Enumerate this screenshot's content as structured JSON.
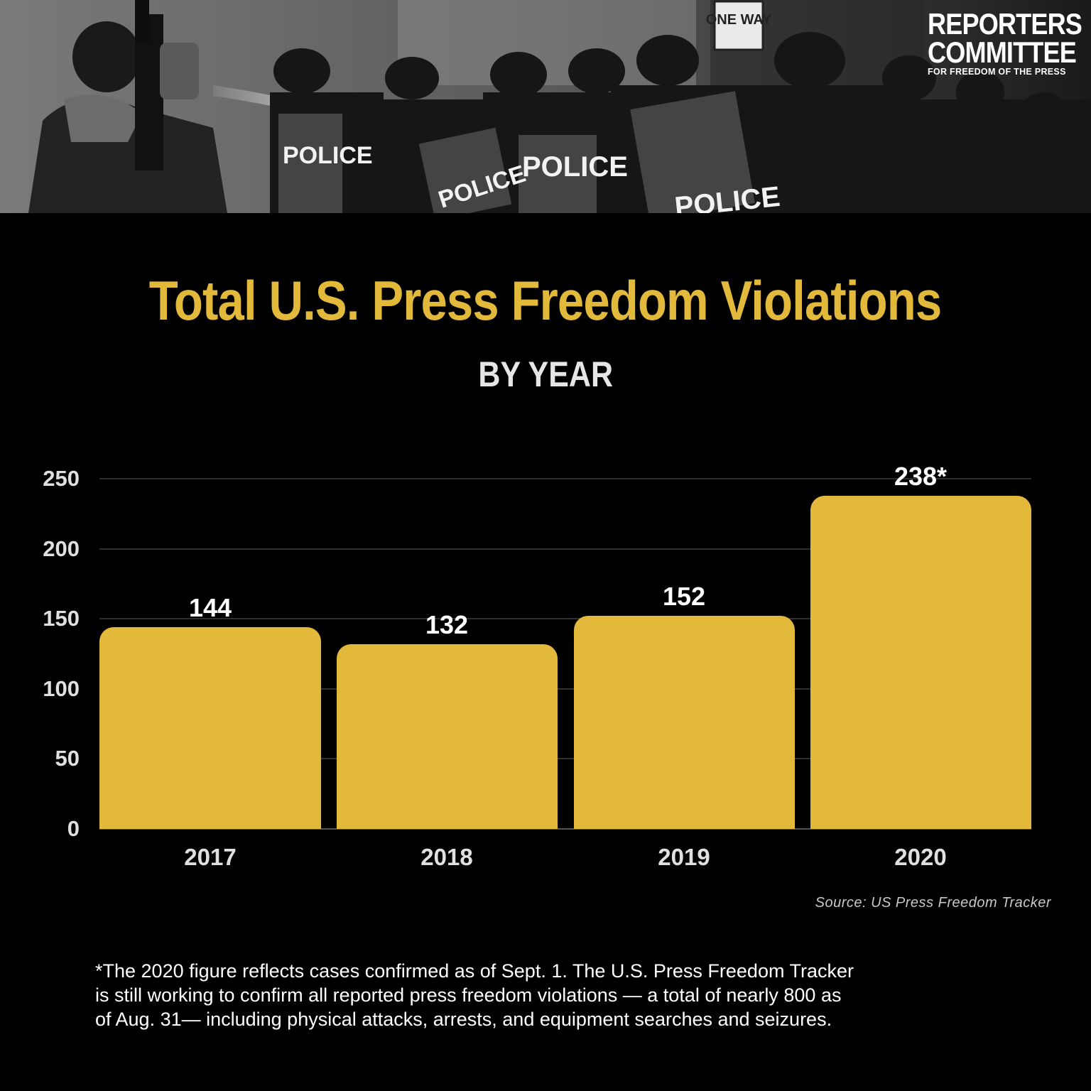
{
  "header": {
    "photo_description": "Grayscale photo of a camera operator filming riot police with shields labeled POLICE while a spray stream crosses the frame; a ONE WAY street sign is visible",
    "photo_texts": [
      "ONE WAY",
      "POLICE",
      "POLICE",
      "POLICE",
      "POLICE"
    ],
    "logo": {
      "line1": "REPORTERS",
      "line2": "COMMITTEE",
      "line3": "FOR FREEDOM OF THE PRESS"
    }
  },
  "title": "Total U.S. Press Freedom Violations",
  "subtitle": "BY YEAR",
  "colors": {
    "background": "#000000",
    "accent": "#e2b93b",
    "bar": "#e2b93b",
    "value_label": "#ffffff",
    "axis_label": "#e0e0e0",
    "gridline": "#2e2e2e"
  },
  "chart_data": {
    "type": "bar",
    "title": "Total U.S. Press Freedom Violations",
    "subtitle": "BY YEAR",
    "categories": [
      "2017",
      "2018",
      "2019",
      "2020"
    ],
    "values": [
      144,
      132,
      152,
      238
    ],
    "value_labels": [
      "144",
      "132",
      "152",
      "238*"
    ],
    "xlabel": "",
    "ylabel": "",
    "ylim": [
      0,
      250
    ],
    "yticks": [
      0,
      50,
      100,
      150,
      200,
      250
    ],
    "grid": true,
    "legend": null,
    "annotations": [
      "238* — 2020 figure reflects cases confirmed as of Sept. 1"
    ],
    "source": "Source: US Press Freedom Tracker"
  },
  "y_axis": {
    "ticks": [
      "250",
      "200",
      "150",
      "100",
      "50",
      "0"
    ]
  },
  "source": "Source: US Press Freedom Tracker",
  "footnote": {
    "lines": [
      "*The 2020 figure reflects cases confirmed as of Sept. 1. The U.S. Press Freedom Tracker",
      "is still working to confirm all reported press freedom violations — a total of nearly 800 as",
      "of Aug. 31— including physical attacks, arrests, and equipment searches and seizures."
    ]
  }
}
